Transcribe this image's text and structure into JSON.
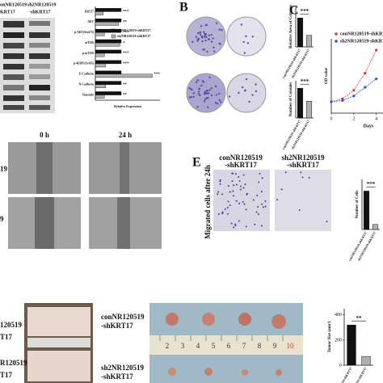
{
  "figure": {
    "panel_letters": [
      "B",
      "C",
      "E"
    ],
    "blot_headers": [
      "onNR120519",
      "KRT17",
      "sh2NR120519",
      "-shKRT17"
    ],
    "wound_times": [
      "0 h",
      "24 h"
    ],
    "wound_rows": [
      "19",
      "9"
    ],
    "migration_headers": [
      "conNR120519",
      "-shKRT17",
      "sh2NR120519",
      "-shKRT17"
    ],
    "migration_ylabel": "Migrated cells after 24h",
    "mice_rows": [
      "120519",
      "T17",
      "R120519",
      "T17"
    ],
    "tumor_rows": [
      "conNR120519",
      "-shKRT17",
      "sh2NR120519",
      "-shKRT17"
    ],
    "ruler_numbers": [
      "2",
      "3",
      "4",
      "5",
      "6",
      "7",
      "8",
      "9",
      "10"
    ]
  },
  "chart_data": [
    {
      "type": "barh",
      "xlabel": "Relative Expression",
      "categories": [
        "KRT17",
        "AKT",
        "p-AKT(Ser473)",
        "mTOR",
        "p-mTOR",
        "p-4EBP1(Ser65)",
        "E-Cadherin",
        "N-Cadherin",
        "Vimentin"
      ],
      "series": [
        {
          "name": "conNR120519-shKRT17",
          "color": "#111111",
          "values": [
            1,
            1,
            1,
            1,
            1,
            1,
            1,
            1,
            1
          ]
        },
        {
          "name": "sh2NR120519-shKRT17",
          "color": "#b0b0b0",
          "values": [
            0.3,
            0.9,
            0.35,
            0.95,
            0.35,
            0.4,
            2.2,
            0.4,
            0.35
          ]
        }
      ],
      "significance": [
        "***",
        "**",
        "***",
        "*",
        "***",
        "***",
        "***",
        "**",
        "**"
      ],
      "xlim": [
        0,
        2.5
      ],
      "legend": "top-right"
    },
    {
      "type": "bar",
      "ylabel": "Relative Area of Colonies",
      "categories": [
        "conNR120519-shKRT17",
        "sh2NR120519-shKRT17"
      ],
      "values": [
        1,
        0.4
      ],
      "colors": [
        "#111111",
        "#b0b0b0"
      ],
      "significance": "***",
      "ylim": [
        0,
        1.4
      ]
    },
    {
      "type": "bar",
      "ylabel": "Number of Colonies",
      "categories": [
        "conNR120519-shKRT17",
        "sh2NR120519-shKRT17"
      ],
      "values": [
        160,
        90
      ],
      "colors": [
        "#111111",
        "#b0b0b0"
      ],
      "significance": "***",
      "ylim": [
        0,
        200
      ]
    },
    {
      "type": "line",
      "ylabel": "OD value",
      "xlabel": "Days",
      "x": [
        0,
        1,
        2,
        3,
        4
      ],
      "xlim": [
        0,
        4.6
      ],
      "xticks": [
        0,
        2,
        4
      ],
      "ylim": [
        0,
        1.3
      ],
      "series": [
        {
          "name": "conNR120519-shKRT17",
          "color": "#e0393e",
          "values": [
            0.2,
            0.25,
            0.4,
            0.7,
            1.1
          ]
        },
        {
          "name": "sh2NR120519-shKRT17",
          "color": "#3a4fd8",
          "values": [
            0.2,
            0.22,
            0.3,
            0.45,
            0.6
          ]
        }
      ]
    },
    {
      "type": "bar",
      "ylabel": "Number of Cells",
      "categories": [
        "conNR120519-shKRT17",
        "sh2NR120519-shKRT17"
      ],
      "values": [
        115,
        15
      ],
      "colors": [
        "#111111",
        "#b0b0b0"
      ],
      "significance": "***",
      "ylim": [
        0,
        150
      ]
    },
    {
      "type": "bar",
      "ylabel": "Tumor Size (mm³)",
      "categories": [
        "conNR120519-shKRT17",
        "sh2NR120519-shKRT17"
      ],
      "values": [
        320,
        70
      ],
      "colors": [
        "#111111",
        "#b0b0b0"
      ],
      "significance": "**",
      "ylim": [
        0,
        450
      ],
      "yticks": [
        0,
        200,
        400
      ]
    }
  ]
}
